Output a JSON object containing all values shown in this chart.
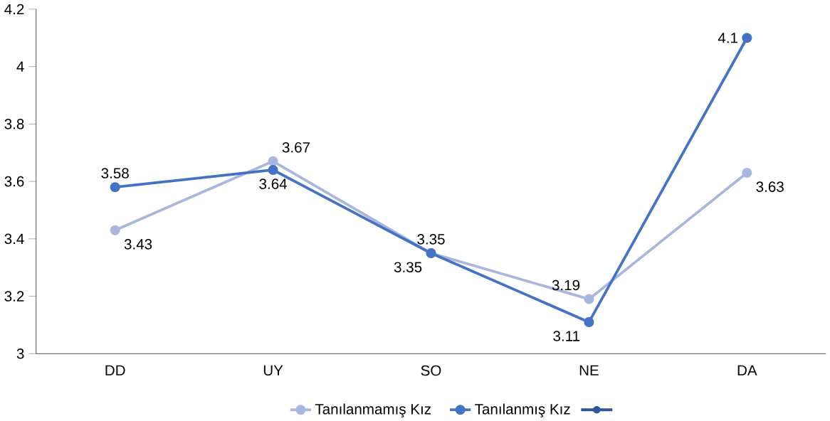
{
  "chart_data": {
    "type": "line",
    "categories": [
      "DD",
      "UY",
      "SO",
      "NE",
      "DA"
    ],
    "series": [
      {
        "name": "Tanılanmamış Kız",
        "color": "#a9b6de",
        "values": [
          3.43,
          3.67,
          3.35,
          3.19,
          3.63
        ]
      },
      {
        "name": "Tanılanmış Kız",
        "color": "#4472c4",
        "values": [
          3.58,
          3.64,
          3.35,
          3.11,
          4.1
        ]
      },
      {
        "color": "#2f5597",
        "values": [
          null,
          null,
          null,
          null,
          null
        ]
      }
    ],
    "ylim": [
      3,
      4.2
    ],
    "yticks": [
      3,
      3.2,
      3.4,
      3.6,
      3.8,
      4,
      4.2
    ],
    "data_labels": true,
    "marker": "circle",
    "line_style": "solid",
    "legend": "bottom",
    "grid": false
  }
}
